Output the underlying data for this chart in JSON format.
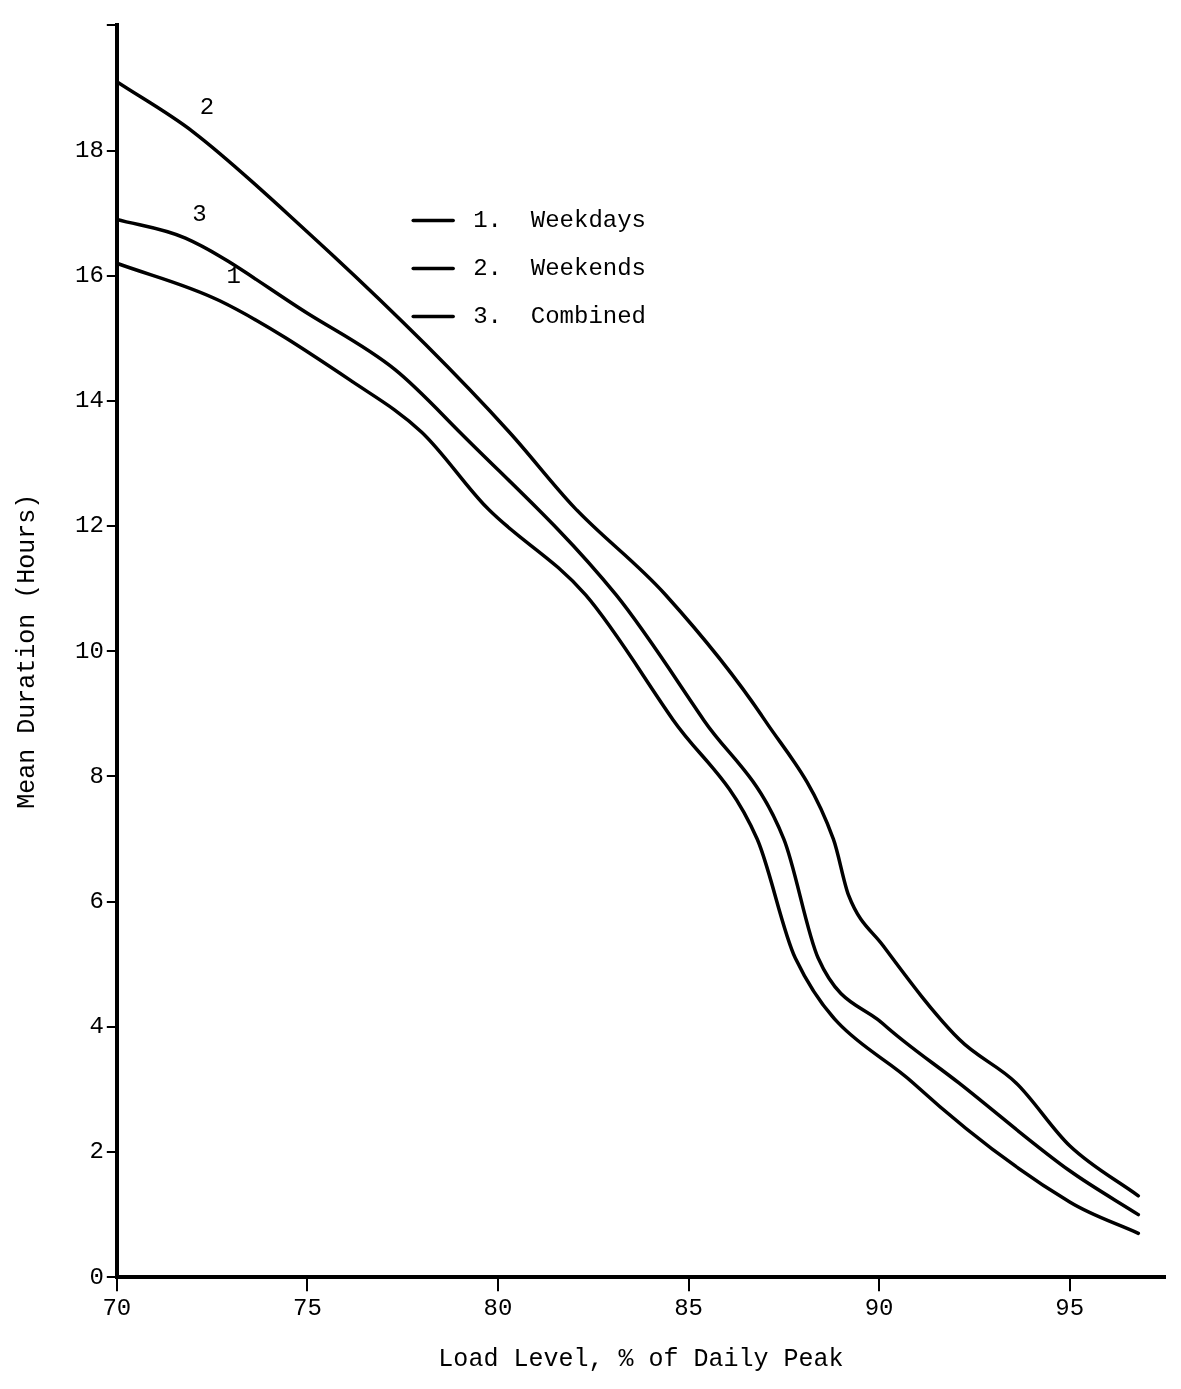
{
  "chart_data": {
    "type": "line",
    "xlabel": "Load Level, % of Daily Peak",
    "ylabel": "Mean Duration (Hours)",
    "xlim": [
      70,
      97.5
    ],
    "ylim": [
      0,
      20
    ],
    "xticks": [
      70,
      75,
      80,
      85,
      90,
      95
    ],
    "yticks": [
      0,
      2,
      4,
      6,
      8,
      10,
      12,
      14,
      16,
      18,
      {
        "value": 20,
        "label": null
      }
    ],
    "grid": false,
    "legend": "top",
    "marker": "none",
    "line_style": "solid",
    "series": [
      {
        "name": "1.  Weekdays",
        "color": "#000000",
        "x": [
          70,
          72.7,
          76.2,
          78.0,
          79.7,
          82.3,
          84.6,
          86.8,
          87.8,
          90.9,
          95.0,
          96.8
        ],
        "values": [
          16.2,
          15.6,
          14.3,
          13.5,
          12.3,
          10.9,
          8.9,
          7.0,
          5.1,
          3.1,
          1.2,
          0.7
        ]
      },
      {
        "name": "2.  Weekends",
        "color": "#000000",
        "x": [
          70,
          72.0,
          75.0,
          78.1,
          80.3,
          82.0,
          84.4,
          87.0,
          88.8,
          89.2,
          90.1,
          92.1,
          93.6,
          95.0,
          96.8
        ],
        "values": [
          19.1,
          18.3,
          16.7,
          14.9,
          13.5,
          12.3,
          10.9,
          8.9,
          7.0,
          6.1,
          5.3,
          3.8,
          3.1,
          2.1,
          1.3
        ]
      },
      {
        "name": "3.  Combined",
        "color": "#000000",
        "x": [
          70,
          71.8,
          75.0,
          77.3,
          79.0,
          83.1,
          85.4,
          87.5,
          88.4,
          90.1,
          92.1,
          95.0,
          96.8
        ],
        "values": [
          16.9,
          16.6,
          15.4,
          14.5,
          13.5,
          10.9,
          8.9,
          7.0,
          5.1,
          4.05,
          3.1,
          1.7,
          1.0
        ]
      }
    ],
    "annotations": [
      {
        "text": "1",
        "x": 72.7,
        "y": 15.6
      },
      {
        "text": "2",
        "x": 72.0,
        "y": 18.3
      },
      {
        "text": "3",
        "x": 71.8,
        "y": 16.6
      }
    ]
  }
}
